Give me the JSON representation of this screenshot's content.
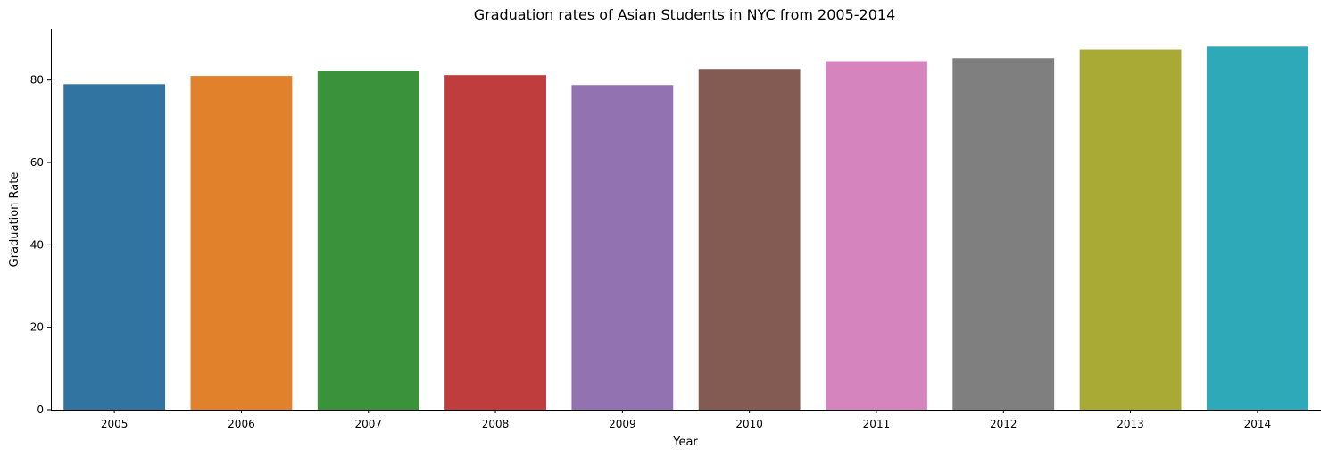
{
  "chart_data": {
    "type": "bar",
    "title": "Graduation rates of Asian Students in NYC from 2005-2014",
    "xlabel": "Year",
    "ylabel": "Graduation Rate",
    "categories": [
      "2005",
      "2006",
      "2007",
      "2008",
      "2009",
      "2010",
      "2011",
      "2012",
      "2013",
      "2014"
    ],
    "values": [
      79.0,
      81.0,
      82.2,
      81.2,
      78.8,
      82.7,
      84.6,
      85.3,
      87.4,
      88.1
    ],
    "colors": [
      "#3274a1",
      "#e1812c",
      "#3a923a",
      "#c03d3e",
      "#9372b2",
      "#845b53",
      "#d684bd",
      "#7f7f7f",
      "#a9aa35",
      "#2ea9b8"
    ],
    "ylim": [
      0,
      92.5
    ],
    "yticks": [
      0,
      20,
      40,
      60,
      80
    ],
    "grid": false,
    "legend": "none"
  }
}
